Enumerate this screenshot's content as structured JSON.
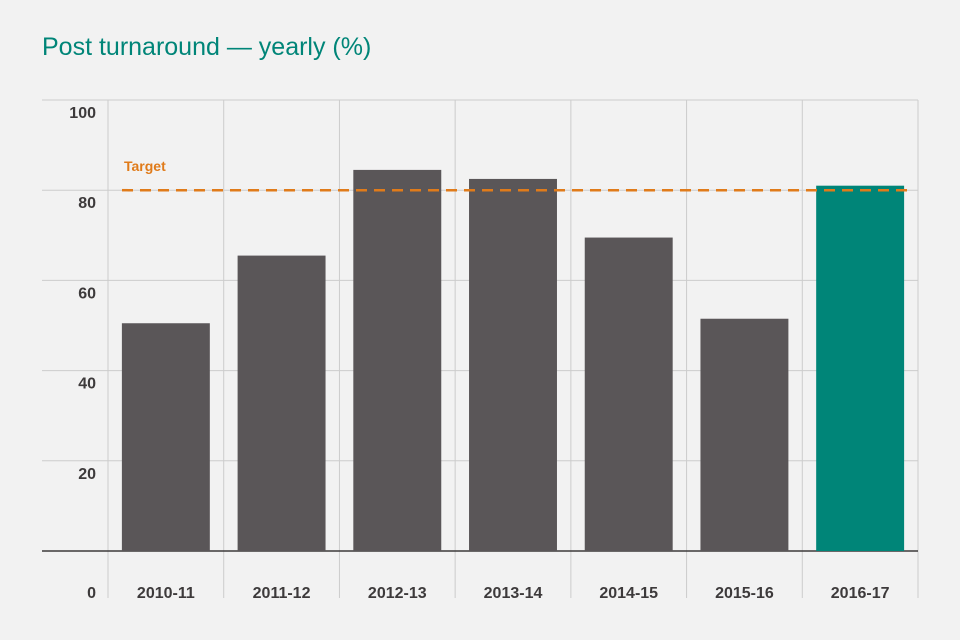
{
  "chart_data": {
    "type": "bar",
    "title": "Post turnaround — yearly (%)",
    "xlabel": "",
    "ylabel": "",
    "categories": [
      "2010-11",
      "2011-12",
      "2012-13",
      "2013-14",
      "2014-15",
      "2015-16",
      "2016-17"
    ],
    "values": [
      50.5,
      65.5,
      84.5,
      82.5,
      69.5,
      51.5,
      81
    ],
    "ylim": [
      0,
      100
    ],
    "yticks": [
      0,
      20,
      40,
      60,
      80,
      100
    ],
    "grid": true,
    "target": {
      "label": "Target",
      "value": 80
    },
    "colors": {
      "bar": "#5a5658",
      "highlight_bar": "#008578",
      "target": "#e07b1a",
      "title": "#008578",
      "grid": "#cccccc",
      "axis": "#3d3a3b"
    },
    "highlight_index": 6
  }
}
